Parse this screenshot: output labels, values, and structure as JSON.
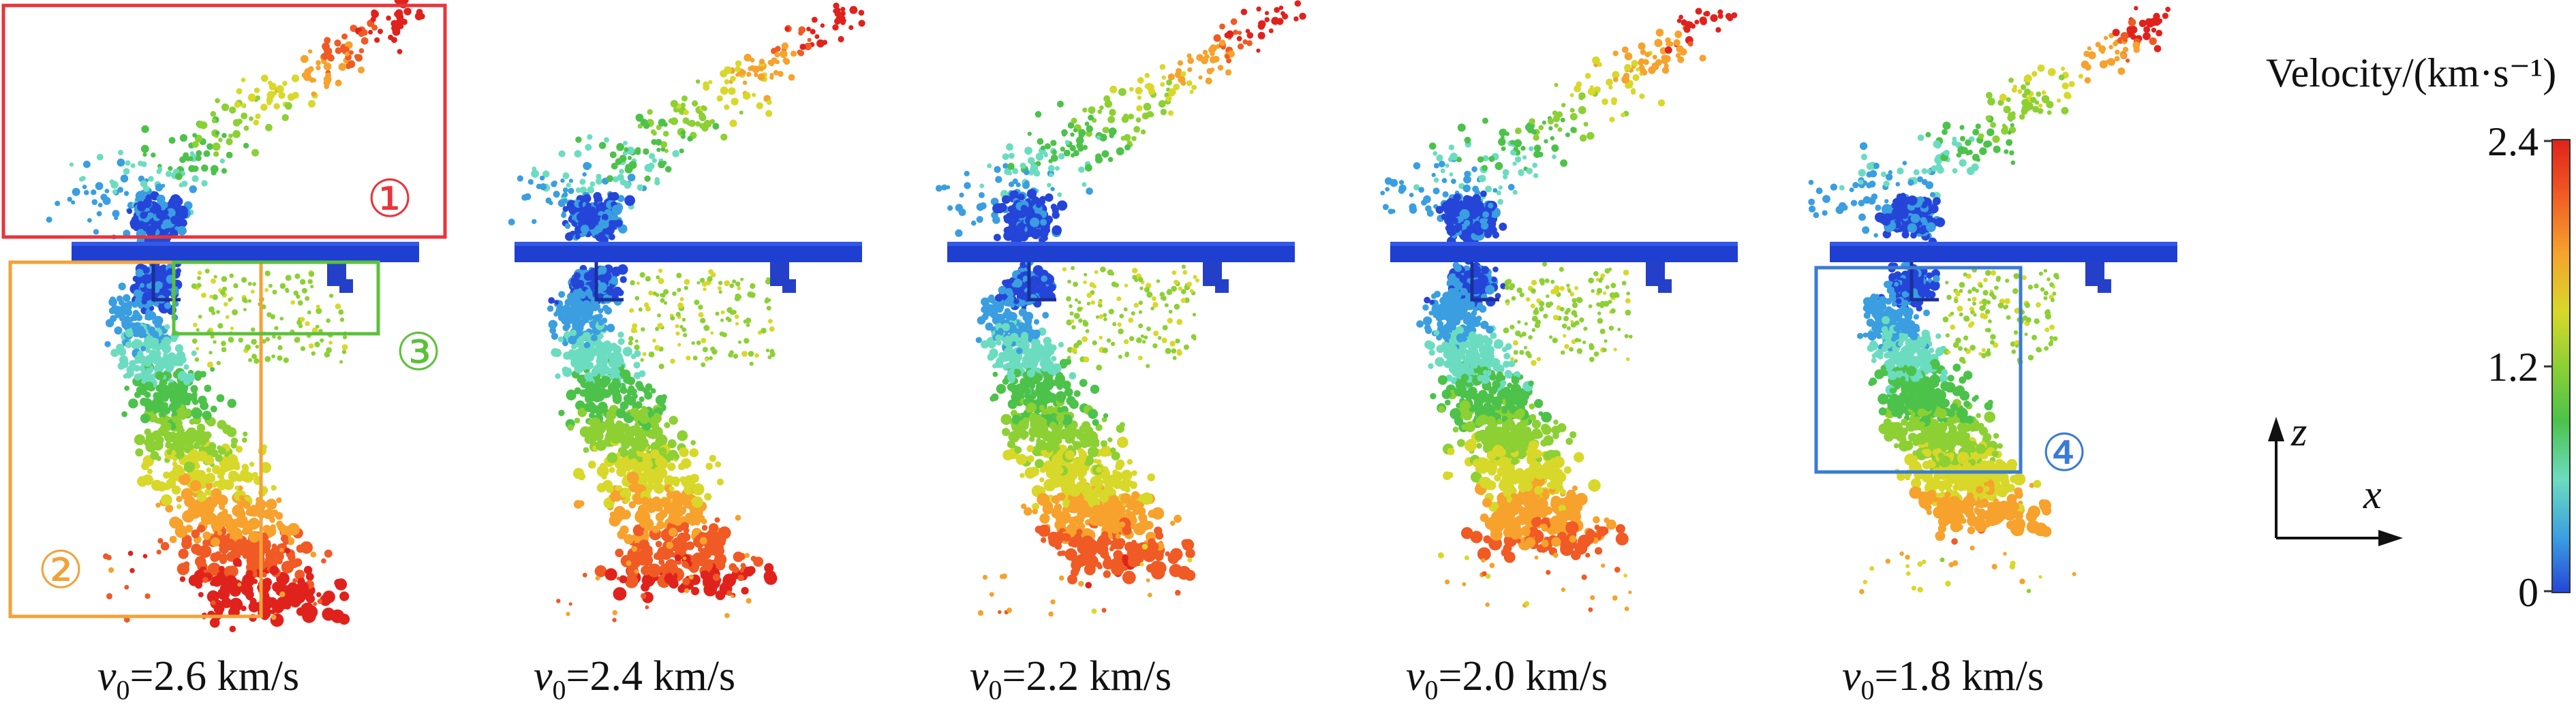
{
  "panels": [
    {
      "caption_var": "v",
      "caption_sub": "0",
      "caption_value": "=2.6 km/s"
    },
    {
      "caption_var": "v",
      "caption_sub": "0",
      "caption_value": "=2.4 km/s"
    },
    {
      "caption_var": "v",
      "caption_sub": "0",
      "caption_value": "=2.2 km/s"
    },
    {
      "caption_var": "v",
      "caption_sub": "0",
      "caption_value": "=2.0 km/s"
    },
    {
      "caption_var": "v",
      "caption_sub": "0",
      "caption_value": "=1.8 km/s"
    }
  ],
  "region_labels": {
    "r1": {
      "text": "①",
      "color": "#e8343a"
    },
    "r2": {
      "text": "②",
      "color": "#f2a23a"
    },
    "r3": {
      "text": "③",
      "color": "#5cc13a"
    },
    "r4": {
      "text": "④",
      "color": "#3a7bd5"
    }
  },
  "colorbar": {
    "title": "Velocity/(km·s⁻¹)",
    "ticks": [
      "2.4",
      "1.2",
      "0"
    ],
    "range": [
      0,
      2.4
    ],
    "colors": [
      "#e0221c",
      "#f05a24",
      "#f6a22d",
      "#d8d82a",
      "#8cd034",
      "#4cc24a",
      "#6cdcc0",
      "#3a9ee0",
      "#2545d8"
    ]
  },
  "axes": {
    "vertical": "z",
    "horizontal": "x"
  },
  "colors": {
    "plate": "#1f3fd0",
    "debris_slow": "#2a4fd8",
    "debris_fast": "#e02020"
  }
}
